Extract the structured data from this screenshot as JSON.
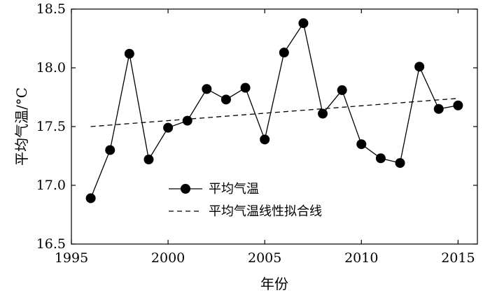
{
  "chart_data": {
    "type": "line",
    "xlabel": "年份",
    "ylabel": "平均气温/°C",
    "xlim": [
      1995,
      2016
    ],
    "ylim": [
      16.5,
      18.5
    ],
    "x_ticks": [
      "1995",
      "2000",
      "2005",
      "2010",
      "2015"
    ],
    "y_ticks": [
      "16.5",
      "17.0",
      "17.5",
      "18.0",
      "18.5"
    ],
    "grid": false,
    "legend_position": "bottom-right",
    "series": [
      {
        "name": "平均气温",
        "style": "solid-with-circle-markers",
        "color": "#000000",
        "x": [
          1996,
          1997,
          1998,
          1999,
          2000,
          2001,
          2002,
          2003,
          2004,
          2005,
          2006,
          2007,
          2008,
          2009,
          2010,
          2011,
          2012,
          2013,
          2014,
          2015
        ],
        "y": [
          16.89,
          17.3,
          18.12,
          17.22,
          17.49,
          17.55,
          17.82,
          17.73,
          17.83,
          17.39,
          18.13,
          18.38,
          17.61,
          17.81,
          17.35,
          17.23,
          17.19,
          18.01,
          17.65,
          17.68
        ]
      },
      {
        "name": "平均气温线性拟合线",
        "style": "dashed",
        "color": "#000000",
        "x": [
          1996,
          2015
        ],
        "y": [
          17.5,
          17.74
        ]
      }
    ]
  }
}
